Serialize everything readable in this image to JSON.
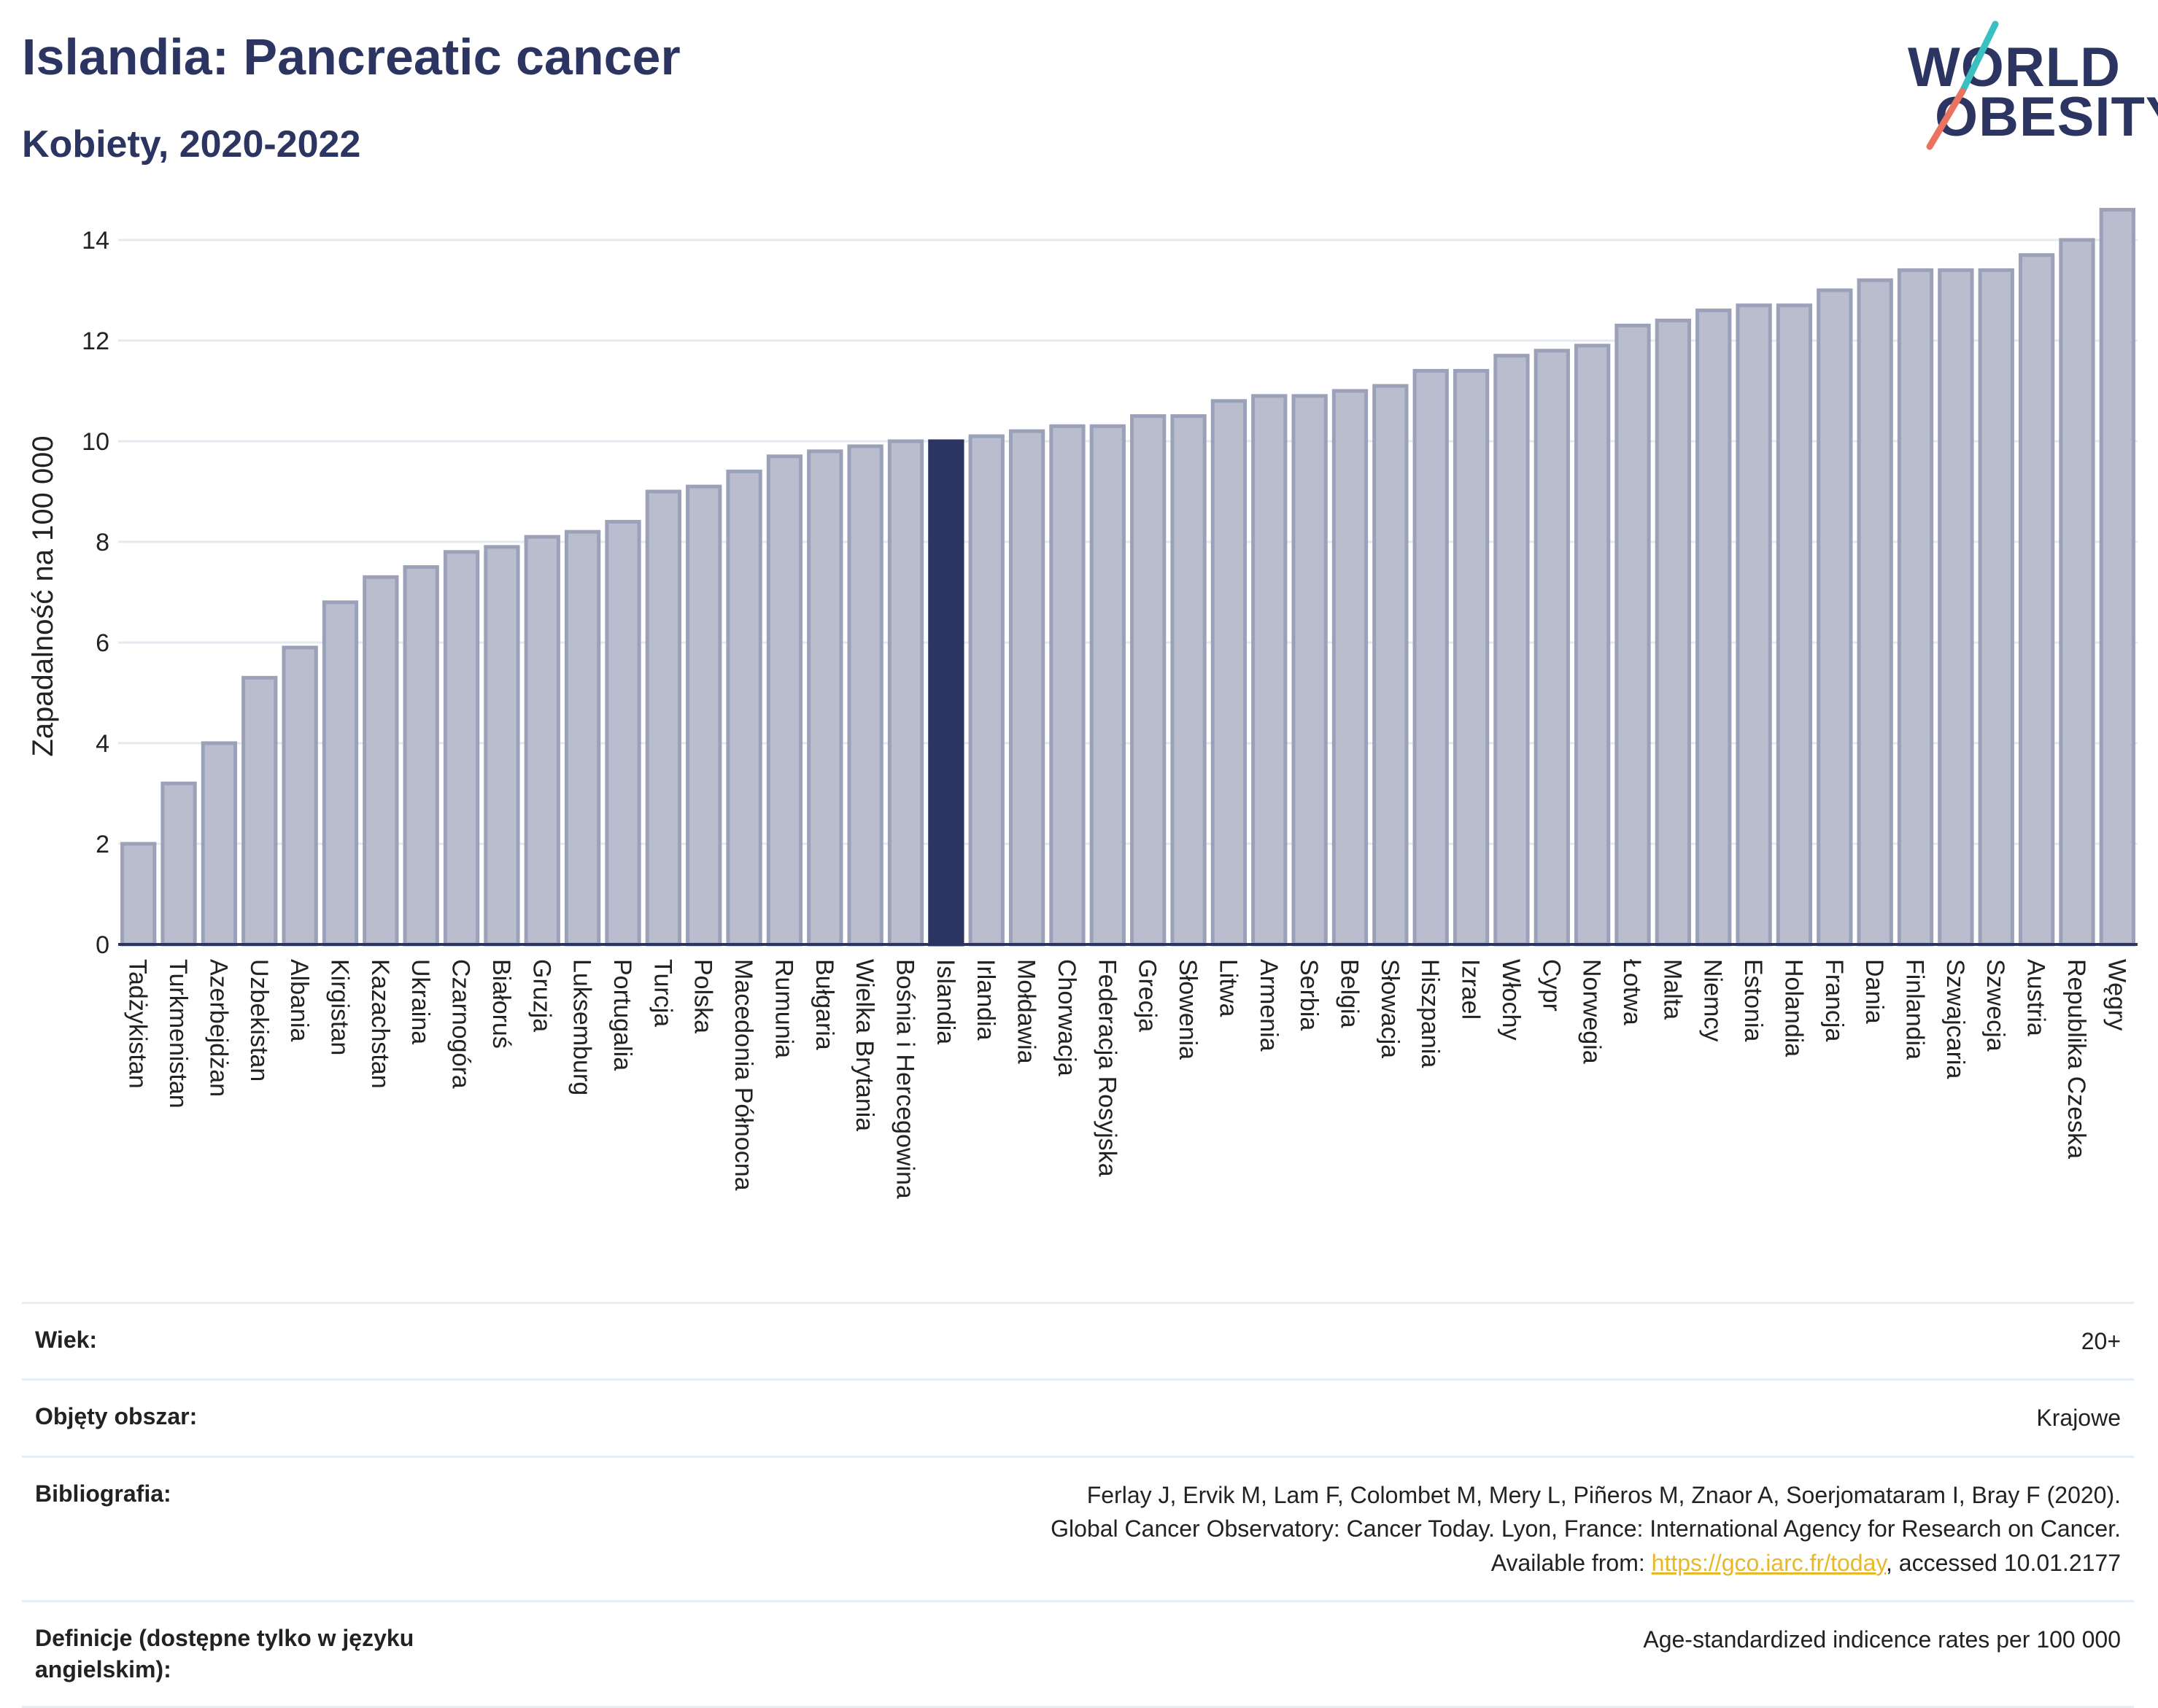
{
  "header": {
    "title": "Islandia: Pancreatic cancer",
    "subtitle": "Kobiety, 2020-2022"
  },
  "logo": {
    "line1": "WORLD",
    "line2": "OBESITY"
  },
  "colors": {
    "bar": "#b9bdce",
    "bar_border": "#9ba1b8",
    "highlight": "#2c3561",
    "gridline": "#e6e9ef",
    "logo_teal": "#3bbfc1",
    "logo_coral": "#e9735f"
  },
  "chart_data": {
    "type": "bar",
    "ylabel": "Zapadalność na 100 000",
    "ylim": [
      0,
      15
    ],
    "yticks": [
      0,
      2,
      4,
      6,
      8,
      10,
      12,
      14
    ],
    "grid": true,
    "highlight": "Islandia",
    "categories": [
      "Tadżykistan",
      "Turkmenistan",
      "Azerbejdżan",
      "Uzbekistan",
      "Albania",
      "Kirgistan",
      "Kazachstan",
      "Ukraina",
      "Czarnogóra",
      "Białoruś",
      "Gruzja",
      "Luksemburg",
      "Portugalia",
      "Turcja",
      "Polska",
      "Macedonia Północna",
      "Rumunia",
      "Bułgaria",
      "Wielka Brytania",
      "Bośnia i Hercegowina",
      "Islandia",
      "Irlandia",
      "Mołdawia",
      "Chorwacja",
      "Federacja Rosyjska",
      "Grecja",
      "Słowenia",
      "Litwa",
      "Armenia",
      "Serbia",
      "Belgia",
      "Słowacja",
      "Hiszpania",
      "Izrael",
      "Włochy",
      "Cypr",
      "Norwegia",
      "Łotwa",
      "Malta",
      "Niemcy",
      "Estonia",
      "Holandia",
      "Francja",
      "Dania",
      "Finlandia",
      "Szwajcaria",
      "Szwecja",
      "Austria",
      "Republika Czeska",
      "Węgry"
    ],
    "values": [
      2.0,
      3.2,
      4.0,
      5.3,
      5.9,
      6.8,
      7.3,
      7.5,
      7.8,
      7.9,
      8.1,
      8.2,
      8.4,
      9.0,
      9.1,
      9.4,
      9.7,
      9.8,
      9.9,
      10.0,
      10.0,
      10.1,
      10.2,
      10.3,
      10.3,
      10.5,
      10.5,
      10.8,
      10.9,
      10.9,
      11.0,
      11.1,
      11.4,
      11.4,
      11.7,
      11.8,
      11.9,
      12.3,
      12.4,
      12.6,
      12.7,
      12.7,
      13.0,
      13.2,
      13.4,
      13.4,
      13.4,
      13.7,
      14.0,
      14.6
    ]
  },
  "meta": [
    {
      "label": "Wiek:",
      "value": "20+"
    },
    {
      "label": "Objęty obszar:",
      "value": "Krajowe"
    },
    {
      "label": "Bibliografia:",
      "value": "Ferlay J, Ervik M, Lam F, Colombet M, Mery L, Piñeros M, Znaor A, Soerjomataram I, Bray F (2020). Global Cancer Observatory: Cancer Today. Lyon, France: International Agency for Research on Cancer. Available from: ",
      "link": "https://gco.iarc.fr/today",
      "suffix": ", accessed 10.01.2177"
    },
    {
      "label": "Definicje (dostępne tylko w języku angielskim):",
      "value": "Age-standardized indicence rates per 100 000"
    }
  ]
}
